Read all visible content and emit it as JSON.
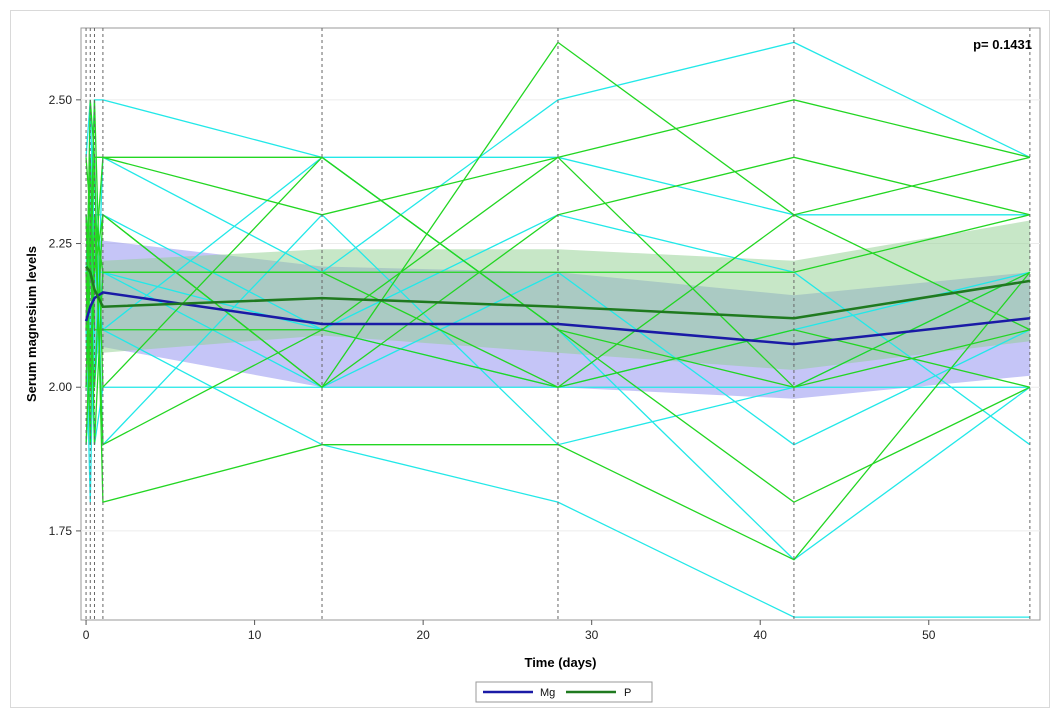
{
  "chart_data": {
    "type": "line",
    "title": "",
    "xlabel": "Time (days)",
    "ylabel": "Serum magnesium levels",
    "xlim": [
      -0.3,
      56.6
    ],
    "ylim": [
      1.595,
      2.625
    ],
    "x_ticks": [
      0,
      10,
      20,
      30,
      40,
      50
    ],
    "y_ticks": [
      1.75,
      2.0,
      2.25,
      2.5
    ],
    "y_tick_labels": [
      "1.75",
      "2.00",
      "2.25",
      "2.50"
    ],
    "grid": "horizontal",
    "reference_lines_x": [
      0,
      0.25,
      0.5,
      1,
      14,
      28,
      42,
      56
    ],
    "annotation": "p=  0.1431",
    "legend_position": "bottom-center",
    "colors": {
      "mg_mean": "#1a1aa6",
      "p_mean": "#1f7a1f",
      "mg_band": "#8c8cf0",
      "p_band": "#8fd08f",
      "cyan_individual": "#22e8e8",
      "green_individual": "#22d622",
      "reference": "#666666"
    },
    "series": [
      {
        "name": "Mg",
        "x": [
          0,
          0.25,
          0.5,
          1,
          14,
          28,
          42,
          56
        ],
        "y": [
          2.115,
          2.14,
          2.155,
          2.165,
          2.11,
          2.11,
          2.075,
          2.12
        ],
        "ci_lower": [
          2.0,
          2.03,
          2.05,
          2.07,
          2.0,
          2.0,
          1.98,
          2.02
        ],
        "ci_upper": [
          2.26,
          2.26,
          2.255,
          2.255,
          2.21,
          2.2,
          2.16,
          2.2
        ]
      },
      {
        "name": "P",
        "x": [
          0,
          0.25,
          0.5,
          1,
          14,
          28,
          42,
          56
        ],
        "y": [
          2.21,
          2.2,
          2.17,
          2.14,
          2.155,
          2.14,
          2.12,
          2.185
        ],
        "ci_lower": [
          2.08,
          2.07,
          2.06,
          2.06,
          2.09,
          2.06,
          2.03,
          2.08
        ],
        "ci_upper": [
          2.29,
          2.28,
          2.24,
          2.22,
          2.24,
          2.24,
          2.22,
          2.29
        ]
      }
    ],
    "individual_x": [
      0,
      0.25,
      0.5,
      1,
      14,
      28,
      42,
      56
    ],
    "individual_cyan": [
      [
        2.0,
        2.3,
        2.5,
        2.5,
        2.4,
        2.4,
        2.3,
        2.3
      ],
      [
        2.1,
        1.8,
        2.2,
        2.2,
        2.0,
        2.2,
        1.9,
        2.1
      ],
      [
        2.2,
        2.4,
        2.0,
        2.4,
        2.2,
        2.5,
        2.6,
        2.4
      ],
      [
        1.9,
        2.0,
        2.1,
        2.1,
        1.9,
        1.8,
        1.6,
        1.6
      ],
      [
        2.3,
        2.1,
        1.9,
        2.0,
        2.0,
        2.0,
        2.0,
        2.0
      ],
      [
        2.0,
        2.2,
        2.3,
        2.3,
        2.1,
        2.3,
        2.2,
        1.9
      ],
      [
        2.4,
        2.5,
        2.2,
        2.1,
        2.4,
        2.1,
        1.7,
        2.0
      ],
      [
        2.1,
        2.0,
        2.4,
        1.9,
        2.3,
        1.9,
        2.0,
        2.2
      ],
      [
        2.2,
        2.1,
        2.0,
        2.2,
        2.1,
        2.0,
        2.1,
        2.2
      ]
    ],
    "individual_green": [
      [
        2.1,
        2.5,
        2.4,
        2.4,
        2.3,
        2.4,
        2.5,
        2.4
      ],
      [
        2.3,
        2.0,
        2.2,
        2.3,
        2.0,
        2.6,
        2.3,
        2.1
      ],
      [
        2.0,
        2.2,
        2.5,
        2.0,
        2.4,
        2.1,
        1.8,
        2.0
      ],
      [
        2.4,
        2.3,
        1.9,
        2.2,
        2.2,
        2.2,
        2.2,
        2.3
      ],
      [
        2.2,
        1.9,
        2.3,
        1.9,
        2.1,
        2.4,
        2.0,
        2.2
      ],
      [
        2.1,
        2.4,
        2.1,
        2.1,
        2.1,
        2.0,
        2.1,
        2.0
      ],
      [
        1.9,
        2.1,
        2.0,
        2.3,
        2.0,
        2.3,
        2.4,
        2.3
      ],
      [
        2.3,
        2.2,
        2.4,
        1.8,
        1.9,
        1.9,
        1.7,
        2.2
      ],
      [
        2.0,
        2.3,
        2.2,
        2.4,
        2.4,
        2.1,
        2.0,
        2.1
      ],
      [
        2.2,
        2.0,
        2.3,
        2.2,
        2.2,
        2.0,
        2.3,
        2.4
      ]
    ]
  }
}
